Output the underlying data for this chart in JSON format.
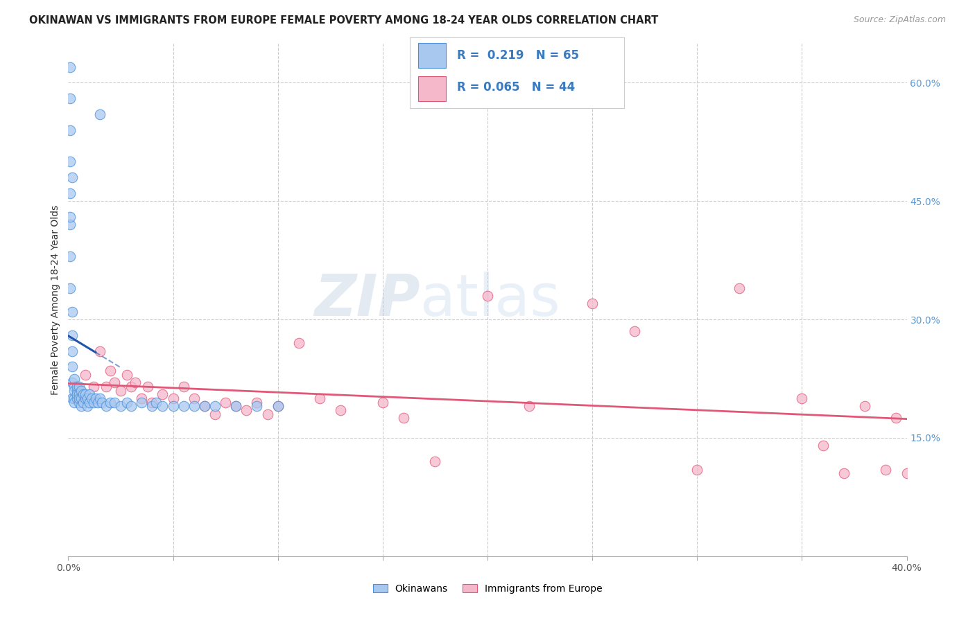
{
  "title": "OKINAWAN VS IMMIGRANTS FROM EUROPE FEMALE POVERTY AMONG 18-24 YEAR OLDS CORRELATION CHART",
  "source": "Source: ZipAtlas.com",
  "ylabel": "Female Poverty Among 18-24 Year Olds",
  "xlim": [
    0.0,
    0.4
  ],
  "ylim": [
    0.0,
    0.65
  ],
  "R_okinawan": 0.219,
  "N_okinawan": 65,
  "R_europe": 0.065,
  "N_europe": 44,
  "color_okinawan_fill": "#a8c8f0",
  "color_okinawan_edge": "#4a90d9",
  "color_europe_fill": "#f5b8cb",
  "color_europe_edge": "#e05878",
  "color_line_okinawan": "#2255aa",
  "color_line_europe": "#e05878",
  "background_color": "#ffffff",
  "grid_color": "#cccccc",
  "okinawan_x": [
    0.001,
    0.001,
    0.001,
    0.001,
    0.001,
    0.001,
    0.001,
    0.001,
    0.002,
    0.002,
    0.002,
    0.002,
    0.002,
    0.002,
    0.003,
    0.003,
    0.003,
    0.003,
    0.003,
    0.004,
    0.004,
    0.004,
    0.004,
    0.005,
    0.005,
    0.005,
    0.005,
    0.006,
    0.006,
    0.006,
    0.007,
    0.007,
    0.008,
    0.008,
    0.009,
    0.009,
    0.01,
    0.01,
    0.011,
    0.012,
    0.013,
    0.014,
    0.015,
    0.016,
    0.018,
    0.02,
    0.022,
    0.025,
    0.028,
    0.03,
    0.035,
    0.04,
    0.042,
    0.045,
    0.05,
    0.055,
    0.06,
    0.065,
    0.07,
    0.08,
    0.09,
    0.1,
    0.015,
    0.002,
    0.001
  ],
  "okinawan_y": [
    0.62,
    0.58,
    0.54,
    0.5,
    0.46,
    0.42,
    0.38,
    0.34,
    0.31,
    0.28,
    0.26,
    0.24,
    0.22,
    0.2,
    0.2,
    0.215,
    0.225,
    0.21,
    0.195,
    0.2,
    0.21,
    0.215,
    0.205,
    0.195,
    0.205,
    0.215,
    0.2,
    0.2,
    0.21,
    0.19,
    0.195,
    0.205,
    0.2,
    0.205,
    0.19,
    0.2,
    0.195,
    0.205,
    0.2,
    0.195,
    0.2,
    0.195,
    0.2,
    0.195,
    0.19,
    0.195,
    0.195,
    0.19,
    0.195,
    0.19,
    0.195,
    0.19,
    0.195,
    0.19,
    0.19,
    0.19,
    0.19,
    0.19,
    0.19,
    0.19,
    0.19,
    0.19,
    0.56,
    0.48,
    0.43
  ],
  "europe_x": [
    0.008,
    0.012,
    0.015,
    0.018,
    0.02,
    0.022,
    0.025,
    0.028,
    0.03,
    0.032,
    0.035,
    0.038,
    0.04,
    0.045,
    0.05,
    0.055,
    0.06,
    0.065,
    0.07,
    0.075,
    0.08,
    0.085,
    0.09,
    0.095,
    0.1,
    0.11,
    0.12,
    0.13,
    0.15,
    0.16,
    0.175,
    0.2,
    0.22,
    0.25,
    0.27,
    0.3,
    0.32,
    0.35,
    0.36,
    0.37,
    0.38,
    0.39,
    0.395,
    0.4
  ],
  "europe_y": [
    0.23,
    0.215,
    0.26,
    0.215,
    0.235,
    0.22,
    0.21,
    0.23,
    0.215,
    0.22,
    0.2,
    0.215,
    0.195,
    0.205,
    0.2,
    0.215,
    0.2,
    0.19,
    0.18,
    0.195,
    0.19,
    0.185,
    0.195,
    0.18,
    0.19,
    0.27,
    0.2,
    0.185,
    0.195,
    0.175,
    0.12,
    0.33,
    0.19,
    0.32,
    0.285,
    0.11,
    0.34,
    0.2,
    0.14,
    0.105,
    0.19,
    0.11,
    0.175,
    0.105
  ],
  "watermark_zip": "ZIP",
  "watermark_atlas": "atlas"
}
